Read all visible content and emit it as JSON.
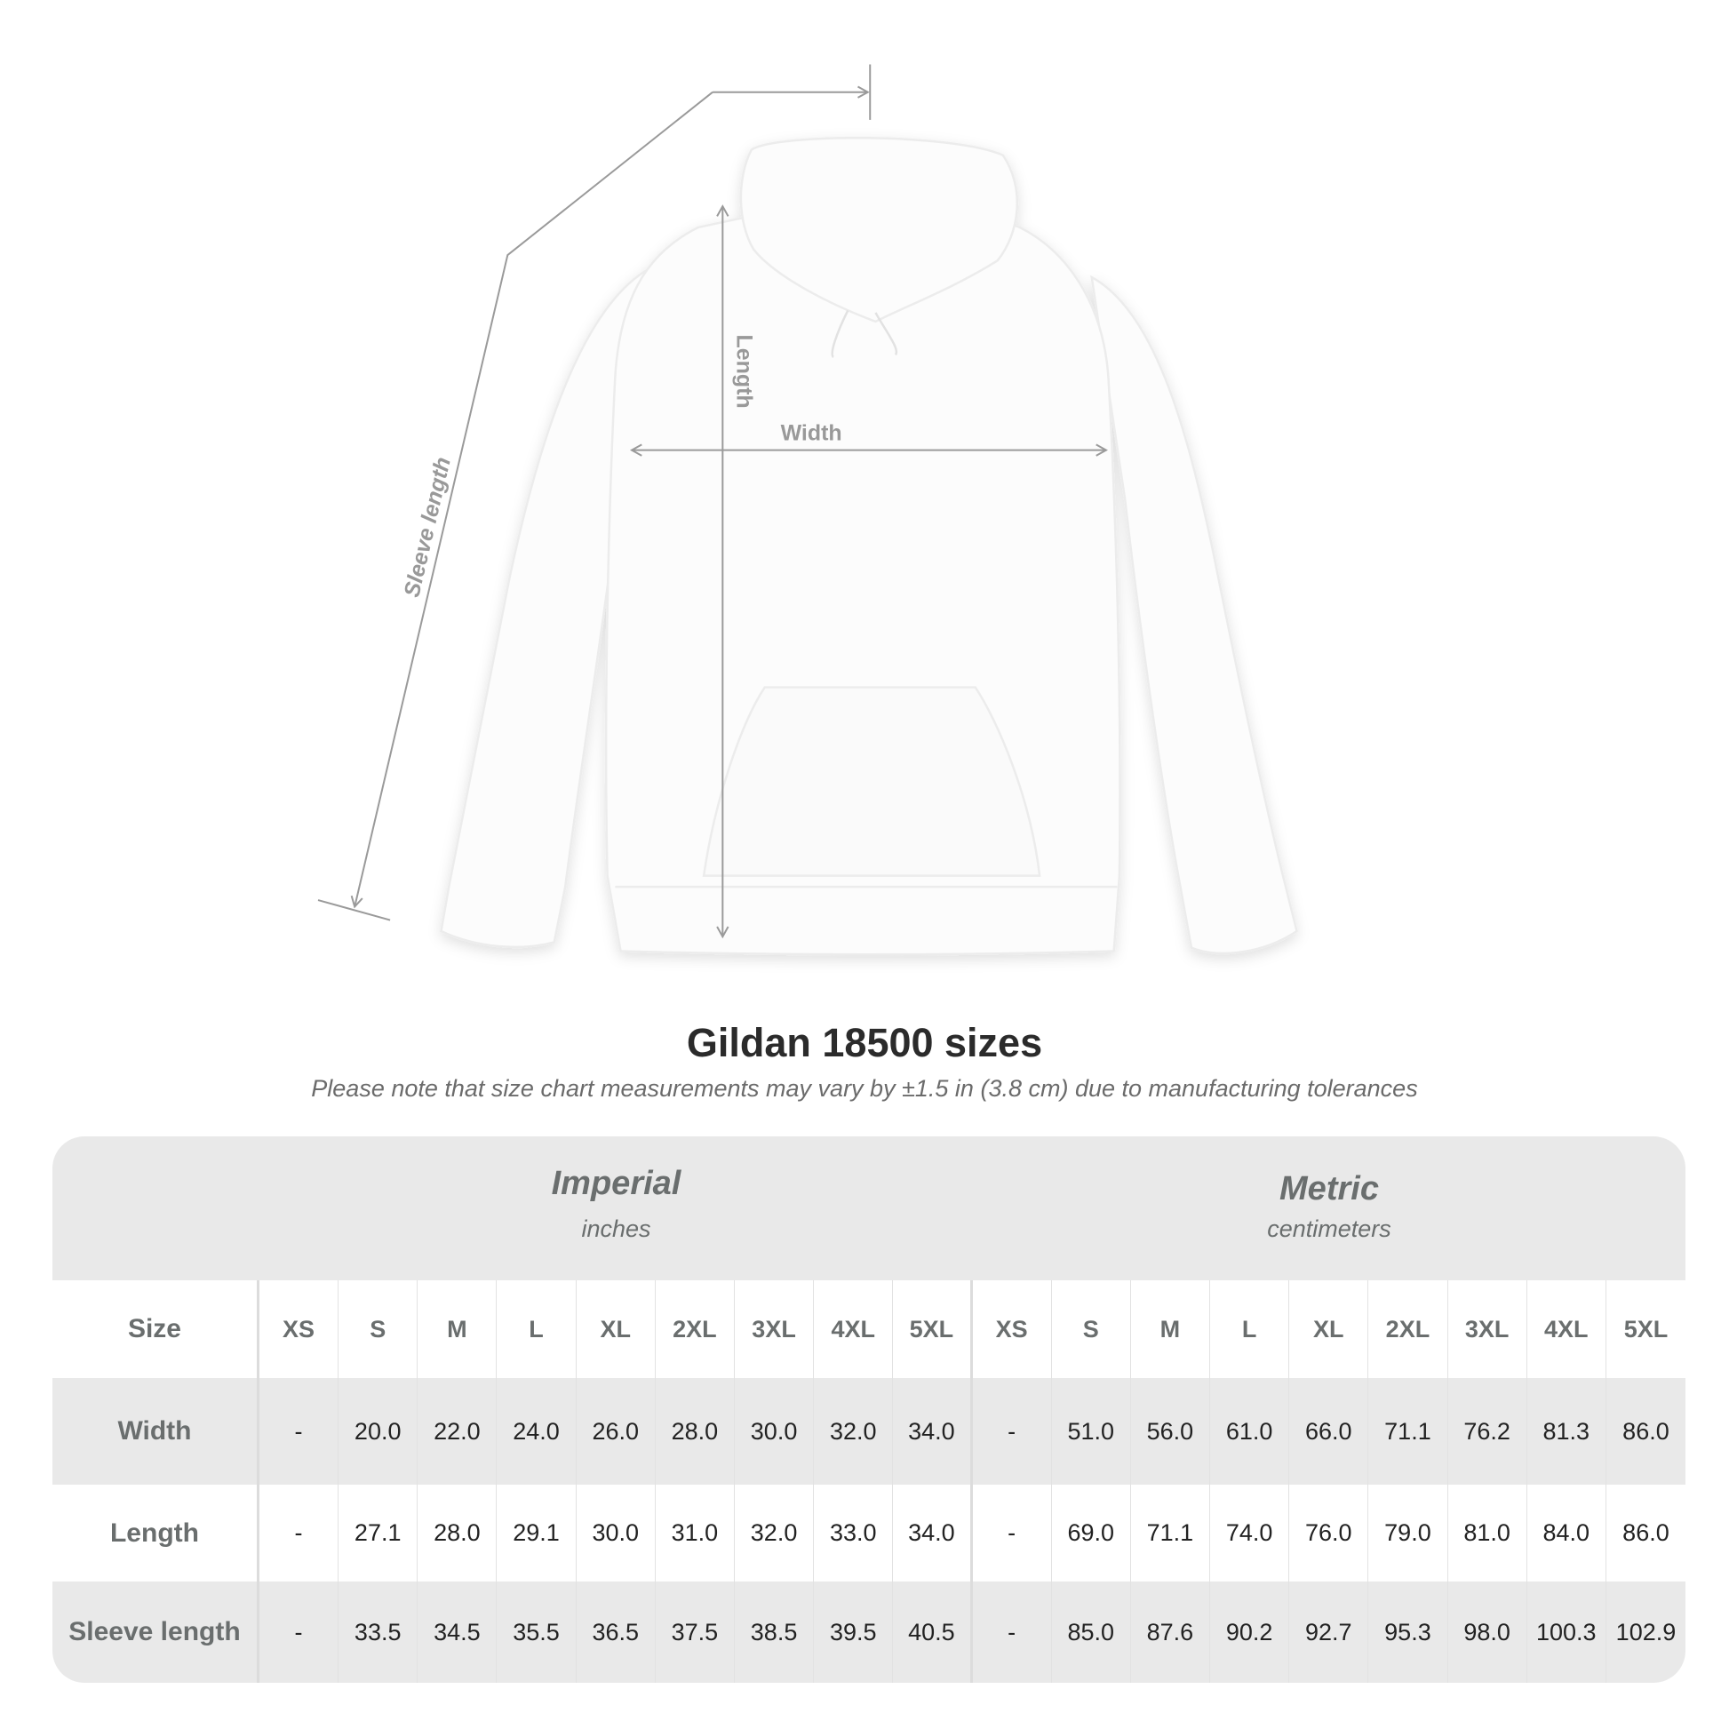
{
  "diagram": {
    "labels": {
      "sleeve": "Sleeve length",
      "length": "Length",
      "width": "Width"
    },
    "colors": {
      "garment": "#ffffff",
      "measure_line": "#9a9a9a",
      "label": "#999999"
    }
  },
  "title": "Gildan 18500 sizes",
  "subtitle": "Please note that size chart measurements may vary by ±1.5 in (3.8 cm) due to manufacturing tolerances",
  "table": {
    "imperial": {
      "name": "Imperial",
      "unit": "inches"
    },
    "metric": {
      "name": "Metric",
      "unit": "centimeters"
    },
    "size_label": "Size",
    "sizes": [
      "XS",
      "S",
      "M",
      "L",
      "XL",
      "2XL",
      "3XL",
      "4XL",
      "5XL"
    ],
    "rows": [
      {
        "label": "Width",
        "imperial": [
          "-",
          "20.0",
          "22.0",
          "24.0",
          "26.0",
          "28.0",
          "30.0",
          "32.0",
          "34.0"
        ],
        "metric": [
          "-",
          "51.0",
          "56.0",
          "61.0",
          "66.0",
          "71.1",
          "76.2",
          "81.3",
          "86.0"
        ]
      },
      {
        "label": "Length",
        "imperial": [
          "-",
          "27.1",
          "28.0",
          "29.1",
          "30.0",
          "31.0",
          "32.0",
          "33.0",
          "34.0"
        ],
        "metric": [
          "-",
          "69.0",
          "71.1",
          "74.0",
          "76.0",
          "79.0",
          "81.0",
          "84.0",
          "86.0"
        ]
      },
      {
        "label": "Sleeve length",
        "imperial": [
          "-",
          "33.5",
          "34.5",
          "35.5",
          "36.5",
          "37.5",
          "38.5",
          "39.5",
          "40.5"
        ],
        "metric": [
          "-",
          "85.0",
          "87.6",
          "90.2",
          "92.7",
          "95.3",
          "98.0",
          "100.3",
          "102.9"
        ]
      }
    ],
    "colors": {
      "band": "#e9e9e9",
      "header_text": "#6a6e6e",
      "value_text": "#222222"
    }
  }
}
